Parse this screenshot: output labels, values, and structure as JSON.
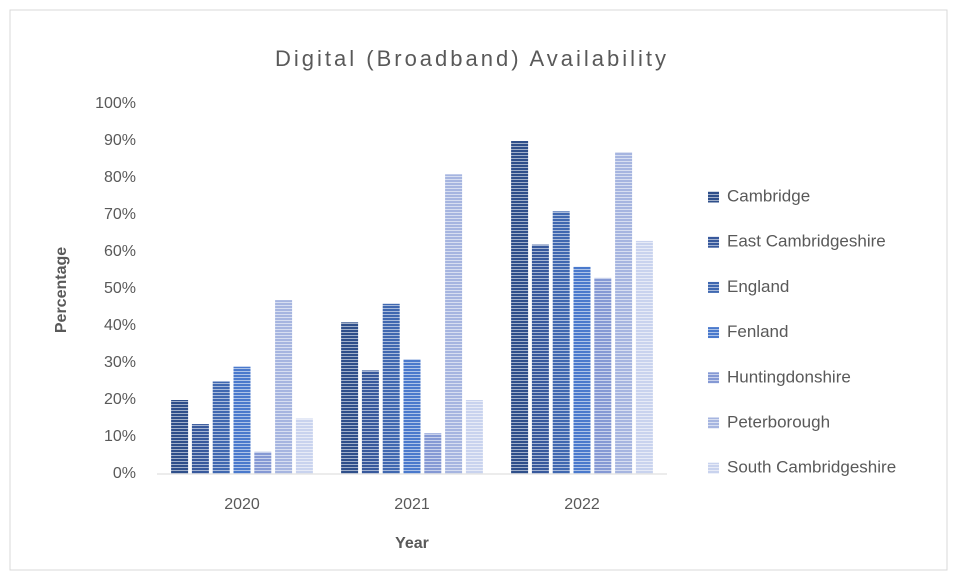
{
  "chart_data": {
    "type": "bar",
    "title": "Digital (Broadband) Availability",
    "x_label": "Year",
    "y_label": "Percentage",
    "categories": [
      "2020",
      "2021",
      "2022"
    ],
    "series": [
      {
        "name": "Cambridge",
        "color": "#2f4f8a",
        "values": [
          20,
          41,
          90
        ]
      },
      {
        "name": "East Cambridgeshire",
        "color": "#38599c",
        "values": [
          13.5,
          28,
          62
        ]
      },
      {
        "name": "England",
        "color": "#4068b0",
        "values": [
          25,
          46,
          71
        ]
      },
      {
        "name": "Fenland",
        "color": "#4a79cc",
        "values": [
          29,
          31,
          56
        ]
      },
      {
        "name": "Huntingdonshire",
        "color": "#8599d4",
        "values": [
          6,
          11,
          53
        ]
      },
      {
        "name": "Peterborough",
        "color": "#a6b5e0",
        "values": [
          47,
          81,
          87
        ]
      },
      {
        "name": "South Cambridgeshire",
        "color": "#c9d3ee",
        "values": [
          15,
          20,
          63
        ]
      }
    ],
    "ylim": [
      0,
      100
    ],
    "yticks": [
      {
        "value": 0,
        "label": "0%"
      },
      {
        "value": 10,
        "label": "10%"
      },
      {
        "value": 20,
        "label": "20%"
      },
      {
        "value": 30,
        "label": "30%"
      },
      {
        "value": 40,
        "label": "40%"
      },
      {
        "value": 50,
        "label": "50%"
      },
      {
        "value": 60,
        "label": "60%"
      },
      {
        "value": 70,
        "label": "70%"
      },
      {
        "value": 80,
        "label": "80%"
      },
      {
        "value": 90,
        "label": "90%"
      },
      {
        "value": 100,
        "label": "100%"
      }
    ],
    "legend": "right"
  }
}
